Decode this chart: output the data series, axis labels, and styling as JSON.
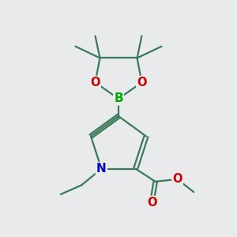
{
  "background_color": "#e8eaeb",
  "bond_color": "#3a7a5a",
  "atom_colors": {
    "B": "#00aa00",
    "O": "#cc0000",
    "N": "#0000cc",
    "C": "#3a7a5a"
  },
  "atom_bg": "#e8eaeb",
  "bond_width": 1.6,
  "font_size_atom": 10.5
}
